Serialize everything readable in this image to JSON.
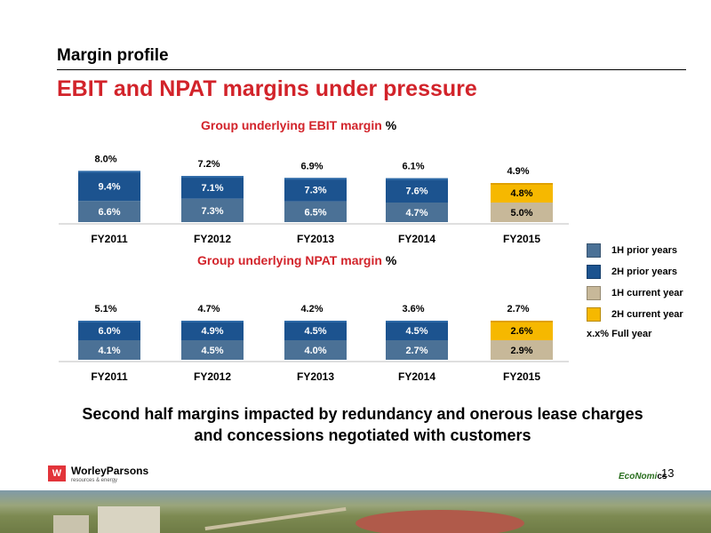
{
  "kicker": "Margin profile",
  "headline": "EBIT and NPAT margins under pressure",
  "takeaway_line1": "Second half margins impacted by redundancy and onerous lease charges",
  "takeaway_line2": "and concessions negotiated with customers",
  "colors": {
    "h1_prior": "#4b7196",
    "h2_prior": "#1c538f",
    "h1_current": "#c7b899",
    "h2_current": "#f6b800",
    "title_red": "#d2232a"
  },
  "legend": {
    "items": [
      {
        "label": "1H prior years",
        "color": "#4b7196"
      },
      {
        "label": "2H prior years",
        "color": "#1c538f"
      },
      {
        "label": "1H current year",
        "color": "#c7b899"
      },
      {
        "label": "2H current year",
        "color": "#f6b800"
      }
    ],
    "note": "x.x% Full year"
  },
  "footer": {
    "logo_mark": "W",
    "logo_name": "WorleyParsons",
    "logo_tagline": "resources & energy",
    "eco_brand_a": "EcoNomi",
    "eco_brand_b": "cs",
    "page_number": "13"
  },
  "chart_data": [
    {
      "type": "bar",
      "stacked": true,
      "title": "Group underlying EBIT margin",
      "title_unit": "%",
      "categories": [
        "FY2011",
        "FY2012",
        "FY2013",
        "FY2014",
        "FY2015"
      ],
      "series": [
        {
          "name": "1H",
          "values": [
            6.6,
            7.3,
            6.5,
            4.7,
            5.0
          ],
          "labels": [
            "6.6%",
            "7.3%",
            "6.5%",
            "4.7%",
            "5.0%"
          ]
        },
        {
          "name": "2H",
          "values": [
            9.4,
            7.1,
            7.3,
            7.6,
            4.8
          ],
          "labels": [
            "9.4%",
            "7.1%",
            "7.3%",
            "7.6%",
            "4.8%"
          ]
        }
      ],
      "full_year": [
        8.0,
        7.2,
        6.9,
        6.1,
        4.9
      ],
      "full_year_labels": [
        "8.0%",
        "7.2%",
        "6.9%",
        "6.1%",
        "4.9%"
      ],
      "current_year_index": 4
    },
    {
      "type": "bar",
      "stacked": true,
      "title": "Group underlying NPAT margin",
      "title_unit": "%",
      "categories": [
        "FY2011",
        "FY2012",
        "FY2013",
        "FY2014",
        "FY2015"
      ],
      "series": [
        {
          "name": "1H",
          "values": [
            4.1,
            4.5,
            4.0,
            2.7,
            2.9
          ],
          "labels": [
            "4.1%",
            "4.5%",
            "4.0%",
            "2.7%",
            "2.9%"
          ]
        },
        {
          "name": "2H",
          "values": [
            6.0,
            4.9,
            4.5,
            4.5,
            2.6
          ],
          "labels": [
            "6.0%",
            "4.9%",
            "4.5%",
            "4.5%",
            "2.6%"
          ]
        }
      ],
      "full_year": [
        5.1,
        4.7,
        4.2,
        3.6,
        2.7
      ],
      "full_year_labels": [
        "5.1%",
        "4.7%",
        "4.2%",
        "3.6%",
        "2.7%"
      ],
      "current_year_index": 4
    }
  ]
}
